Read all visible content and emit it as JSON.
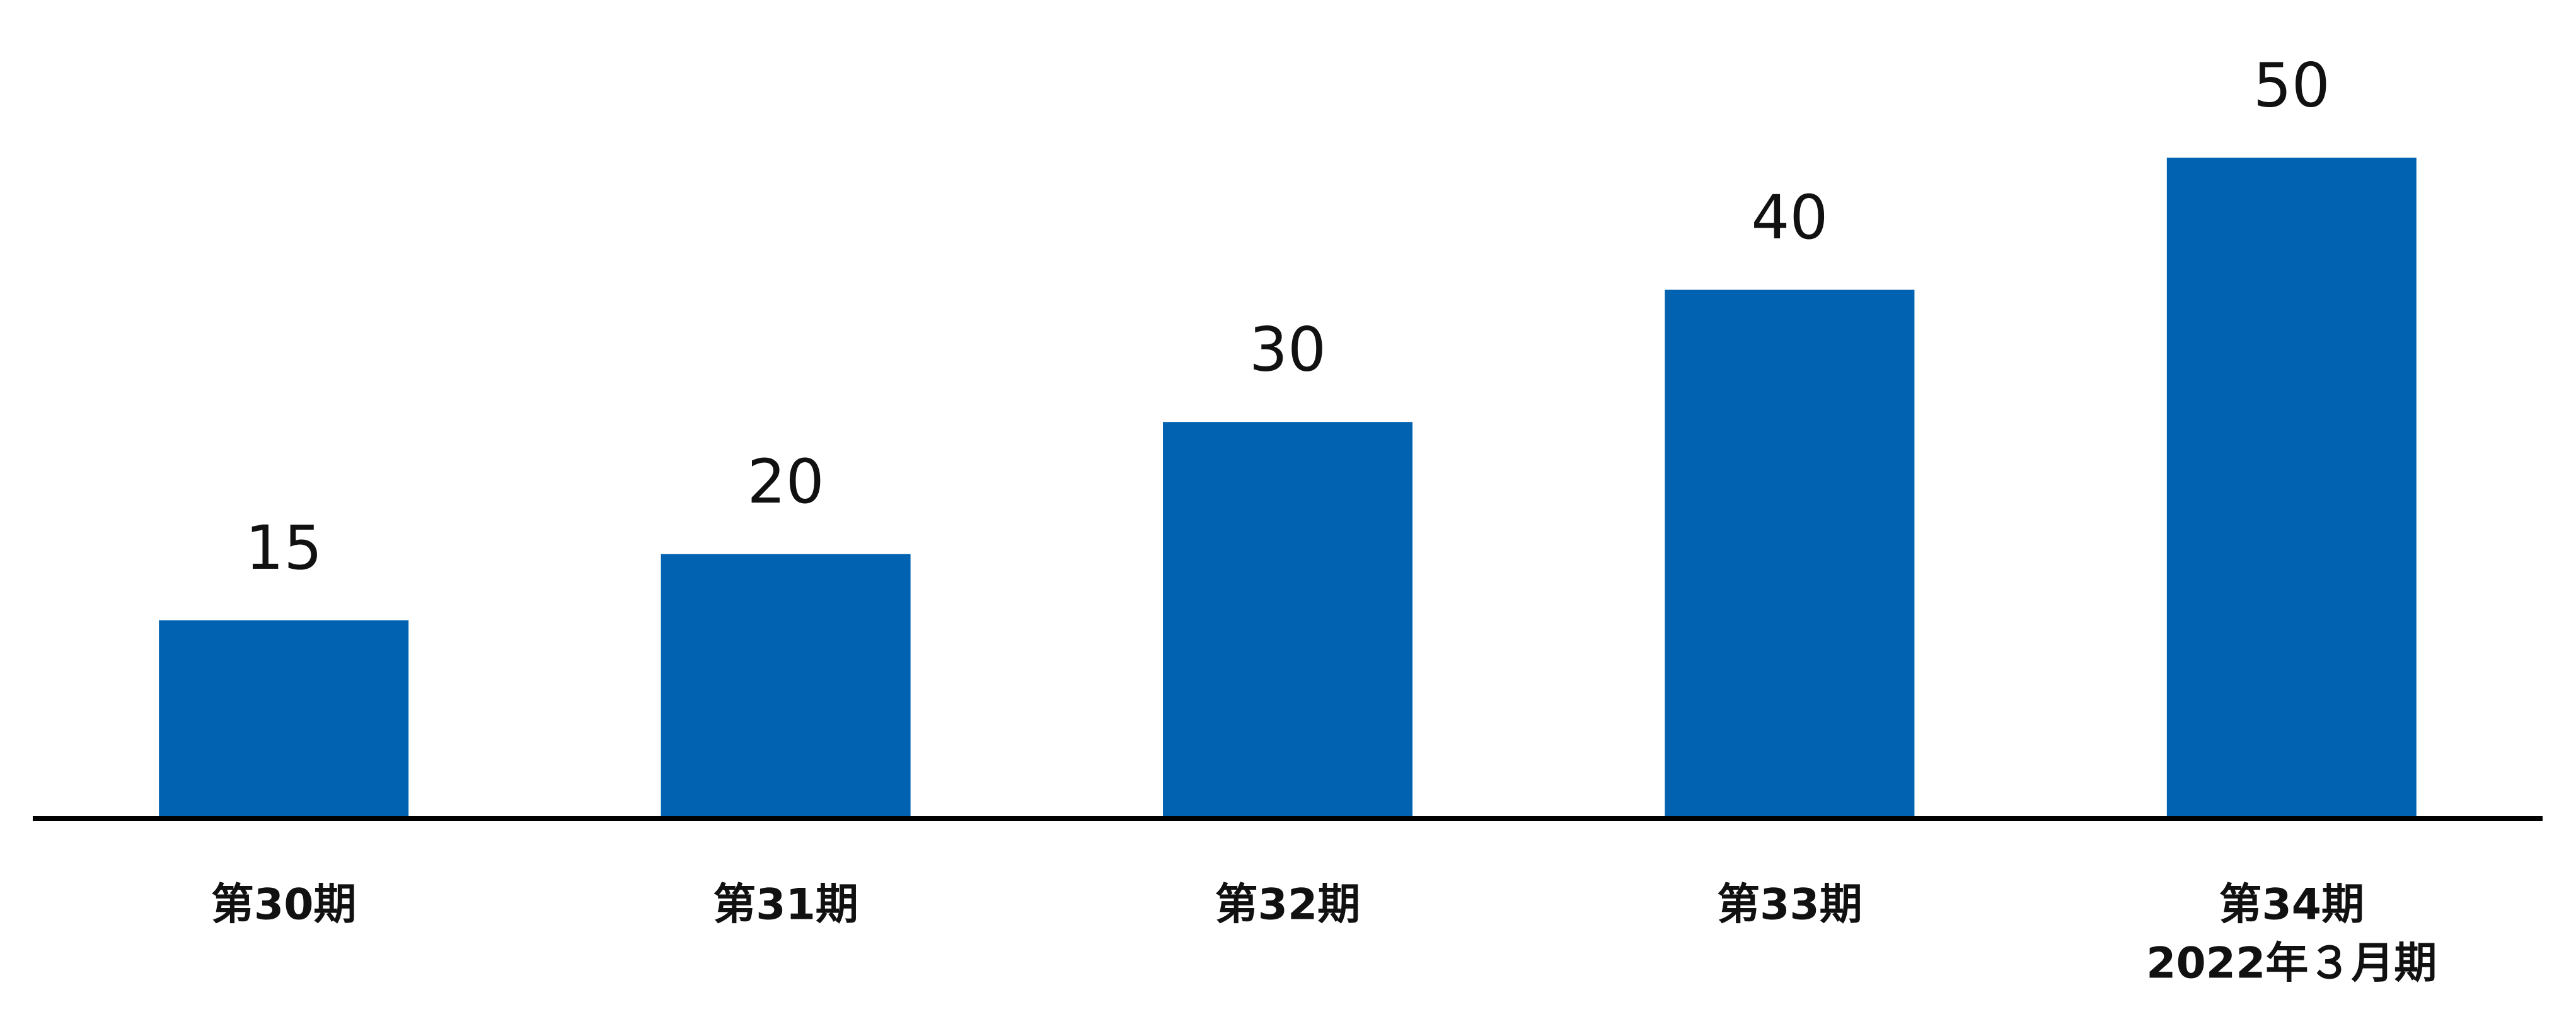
{
  "chart_data": {
    "type": "bar",
    "categories": [
      "第30期",
      "第31期",
      "第32期",
      "第33期",
      "第34期"
    ],
    "category_sublabels": [
      null,
      null,
      null,
      null,
      "2022年３月期"
    ],
    "values": [
      15,
      20,
      30,
      40,
      50
    ],
    "color": "#0062b0",
    "ylim": [
      0,
      50
    ]
  }
}
